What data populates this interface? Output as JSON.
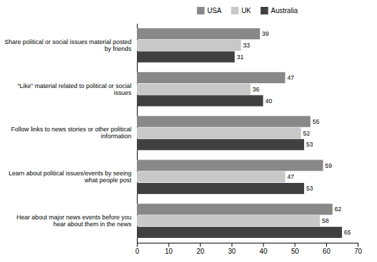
{
  "chart_data": {
    "type": "bar",
    "orientation": "horizontal",
    "categories": [
      "Share political or social issues material posted\nby friends",
      "“Like” material related to political or social\nissues",
      "Follow links to news stories or other political\ninformation",
      "Learn about political issues/events by seeing\nwhat people post",
      "Hear about major news events before you\nhear about them in the news"
    ],
    "series": [
      {
        "name": "USA",
        "color": "#888888",
        "values": [
          39,
          47,
          55,
          59,
          62
        ]
      },
      {
        "name": "UK",
        "color": "#c8c8c8",
        "values": [
          33,
          36,
          52,
          47,
          58
        ]
      },
      {
        "name": "Australia",
        "color": "#404040",
        "values": [
          31,
          40,
          53,
          53,
          65
        ]
      }
    ],
    "xlim": [
      0,
      70
    ],
    "xticks": [
      0,
      10,
      20,
      30,
      40,
      50,
      60,
      70
    ],
    "grid": false,
    "legend": "top",
    "data_labels": true
  }
}
